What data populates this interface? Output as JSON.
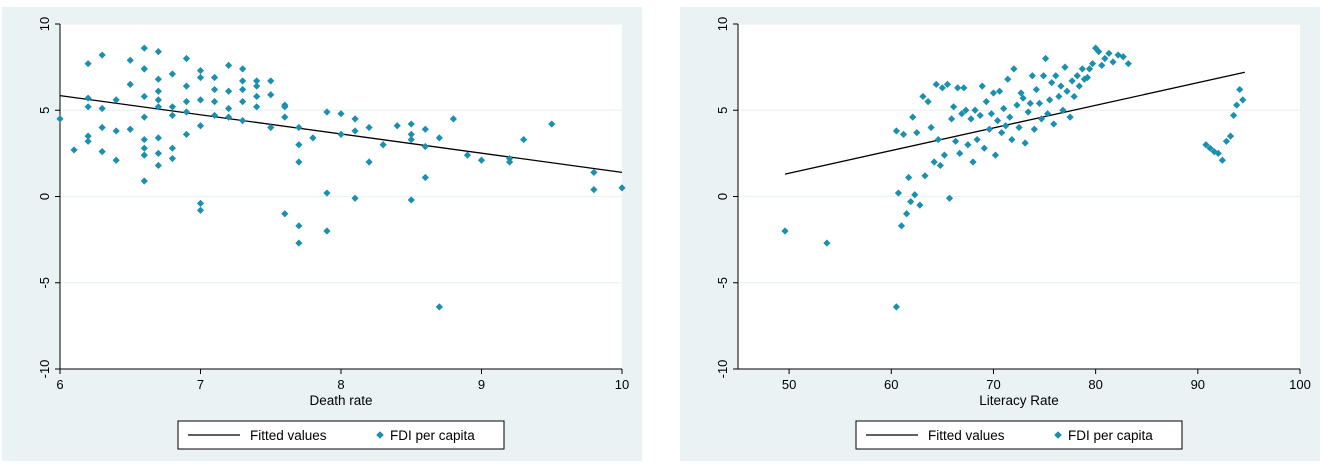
{
  "chart_data": [
    {
      "type": "scatter",
      "xlabel": "Death rate",
      "ylabel": "",
      "xlim": [
        6,
        10
      ],
      "ylim": [
        -10,
        10
      ],
      "xticks": [
        "6",
        "7",
        "8",
        "9",
        "10"
      ],
      "yticks": [
        "-10",
        "-5",
        "0",
        "5",
        "10"
      ],
      "grid": "horizontal",
      "legend": {
        "placement": "bottom",
        "entries": [
          "Fitted values",
          "FDI per capita"
        ]
      },
      "series": [
        {
          "name": "Fitted values",
          "kind": "line",
          "x": [
            6.0,
            10.0
          ],
          "y": [
            5.85,
            1.4
          ]
        },
        {
          "name": "FDI per capita",
          "kind": "scatter",
          "x": [
            6.0,
            6.1,
            6.2,
            6.2,
            6.2,
            6.2,
            6.2,
            6.3,
            6.3,
            6.3,
            6.3,
            6.4,
            6.4,
            6.4,
            6.5,
            6.5,
            6.5,
            6.6,
            6.6,
            6.6,
            6.6,
            6.6,
            6.6,
            6.6,
            6.6,
            6.6,
            6.7,
            6.7,
            6.7,
            6.7,
            6.7,
            6.7,
            6.7,
            6.7,
            6.8,
            6.8,
            6.8,
            6.8,
            6.8,
            6.9,
            6.9,
            6.9,
            6.9,
            6.9,
            7.0,
            7.0,
            7.0,
            7.0,
            7.0,
            7.0,
            7.1,
            7.1,
            7.1,
            7.1,
            7.2,
            7.2,
            7.2,
            7.2,
            7.3,
            7.3,
            7.3,
            7.3,
            7.3,
            7.4,
            7.4,
            7.4,
            7.4,
            7.5,
            7.5,
            7.5,
            7.6,
            7.6,
            7.6,
            7.6,
            7.7,
            7.7,
            7.7,
            7.7,
            7.7,
            7.8,
            7.9,
            7.9,
            7.9,
            8.0,
            8.0,
            8.1,
            8.1,
            8.1,
            8.2,
            8.2,
            8.3,
            8.4,
            8.5,
            8.5,
            8.5,
            8.5,
            8.6,
            8.6,
            8.6,
            8.7,
            8.7,
            8.8,
            8.9,
            9.0,
            9.2,
            9.2,
            9.3,
            9.5,
            9.8,
            9.8,
            10.0
          ],
          "y": [
            4.5,
            2.7,
            7.7,
            5.7,
            5.2,
            3.5,
            3.2,
            8.2,
            5.1,
            4.0,
            2.6,
            5.6,
            3.8,
            2.1,
            7.9,
            6.5,
            3.9,
            8.6,
            7.4,
            5.8,
            4.6,
            3.3,
            2.8,
            2.4,
            0.9,
            7.4,
            6.8,
            6.1,
            5.6,
            5.2,
            3.4,
            2.5,
            1.8,
            8.4,
            5.2,
            4.7,
            2.8,
            2.2,
            7.1,
            6.4,
            5.5,
            4.9,
            3.6,
            8.0,
            7.3,
            5.6,
            4.1,
            -0.4,
            -0.8,
            6.9,
            6.2,
            5.5,
            4.7,
            6.9,
            6.1,
            5.1,
            4.6,
            7.6,
            6.7,
            6.2,
            5.5,
            4.4,
            7.4,
            6.7,
            5.8,
            5.2,
            6.4,
            5.9,
            4.0,
            6.7,
            5.2,
            4.6,
            -1.0,
            5.3,
            4.0,
            2.0,
            -1.7,
            -2.7,
            3.0,
            3.4,
            0.2,
            -2.0,
            4.9,
            3.6,
            4.8,
            3.8,
            -0.1,
            4.5,
            2.0,
            4.0,
            3.0,
            4.1,
            3.6,
            3.3,
            -0.2,
            4.2,
            2.9,
            1.1,
            3.9,
            3.4,
            -6.4,
            4.5,
            2.4,
            2.1,
            2.2,
            2.0,
            3.3,
            4.2,
            1.4,
            0.4,
            0.5
          ]
        }
      ]
    },
    {
      "type": "scatter",
      "xlabel": "Literacy Rate",
      "ylabel": "",
      "xlim": [
        45,
        100
      ],
      "ylim": [
        -10,
        10
      ],
      "xticks": [
        "50",
        "60",
        "70",
        "80",
        "90",
        "100"
      ],
      "yticks": [
        "-10",
        "-5",
        "0",
        "5",
        "10"
      ],
      "grid": "horizontal",
      "legend": {
        "placement": "bottom",
        "entries": [
          "Fitted values",
          "FDI per capita"
        ]
      },
      "series": [
        {
          "name": "Fitted values",
          "kind": "line",
          "x": [
            49.6,
            94.6
          ],
          "y": [
            1.3,
            7.2
          ]
        },
        {
          "name": "FDI per capita",
          "kind": "scatter",
          "x": [
            49.6,
            53.7,
            60.5,
            60.5,
            60.7,
            61.0,
            61.2,
            61.5,
            61.7,
            61.9,
            62.1,
            62.3,
            62.5,
            62.8,
            63.1,
            63.3,
            63.6,
            63.9,
            64.2,
            64.4,
            64.6,
            64.8,
            65.0,
            65.2,
            65.5,
            65.7,
            65.9,
            66.1,
            66.3,
            66.5,
            66.7,
            66.9,
            67.1,
            67.3,
            67.5,
            67.8,
            68.0,
            68.2,
            68.4,
            68.7,
            68.9,
            69.1,
            69.3,
            69.6,
            69.8,
            70.0,
            70.2,
            70.4,
            70.6,
            70.8,
            71.0,
            71.2,
            71.4,
            71.6,
            71.8,
            72.0,
            72.3,
            72.5,
            72.7,
            72.9,
            73.1,
            73.4,
            73.6,
            73.8,
            74.0,
            74.2,
            74.5,
            74.7,
            74.9,
            75.1,
            75.3,
            75.5,
            75.7,
            75.9,
            76.1,
            76.4,
            76.6,
            76.8,
            77.0,
            77.2,
            77.5,
            77.7,
            77.9,
            78.2,
            78.4,
            78.7,
            78.9,
            79.2,
            79.4,
            79.7,
            80.0,
            80.3,
            80.6,
            80.9,
            81.3,
            81.7,
            82.2,
            82.7,
            83.2,
            90.8,
            91.2,
            91.6,
            92.0,
            92.4,
            92.8,
            93.2,
            93.5,
            93.8,
            94.1,
            94.4
          ],
          "y": [
            -2.0,
            -2.7,
            -6.4,
            3.8,
            0.2,
            -1.7,
            3.6,
            -1.0,
            1.1,
            -0.3,
            4.6,
            0.1,
            3.7,
            -0.5,
            5.8,
            1.2,
            5.5,
            4.0,
            2.0,
            6.5,
            3.3,
            1.8,
            6.3,
            2.4,
            6.5,
            -0.1,
            4.5,
            5.2,
            3.2,
            6.3,
            2.5,
            4.8,
            6.3,
            5.0,
            3.0,
            4.5,
            2.0,
            5.0,
            3.3,
            4.7,
            6.4,
            2.8,
            5.5,
            3.9,
            4.8,
            6.0,
            2.4,
            4.4,
            6.1,
            3.7,
            5.1,
            4.1,
            6.8,
            4.6,
            3.3,
            7.4,
            5.3,
            4.0,
            6.0,
            5.7,
            3.1,
            4.9,
            5.4,
            7.0,
            3.9,
            6.2,
            5.4,
            4.5,
            7.0,
            8.0,
            4.8,
            5.6,
            6.6,
            4.2,
            7.0,
            5.8,
            6.4,
            5.0,
            7.5,
            6.1,
            4.6,
            6.7,
            5.8,
            7.0,
            6.4,
            7.4,
            6.8,
            6.9,
            7.4,
            7.7,
            8.6,
            8.4,
            7.6,
            8.0,
            8.3,
            7.8,
            8.2,
            8.1,
            7.7,
            3.0,
            2.8,
            2.6,
            2.5,
            2.1,
            3.2,
            3.5,
            4.7,
            5.3,
            6.2,
            5.6
          ]
        }
      ]
    }
  ]
}
